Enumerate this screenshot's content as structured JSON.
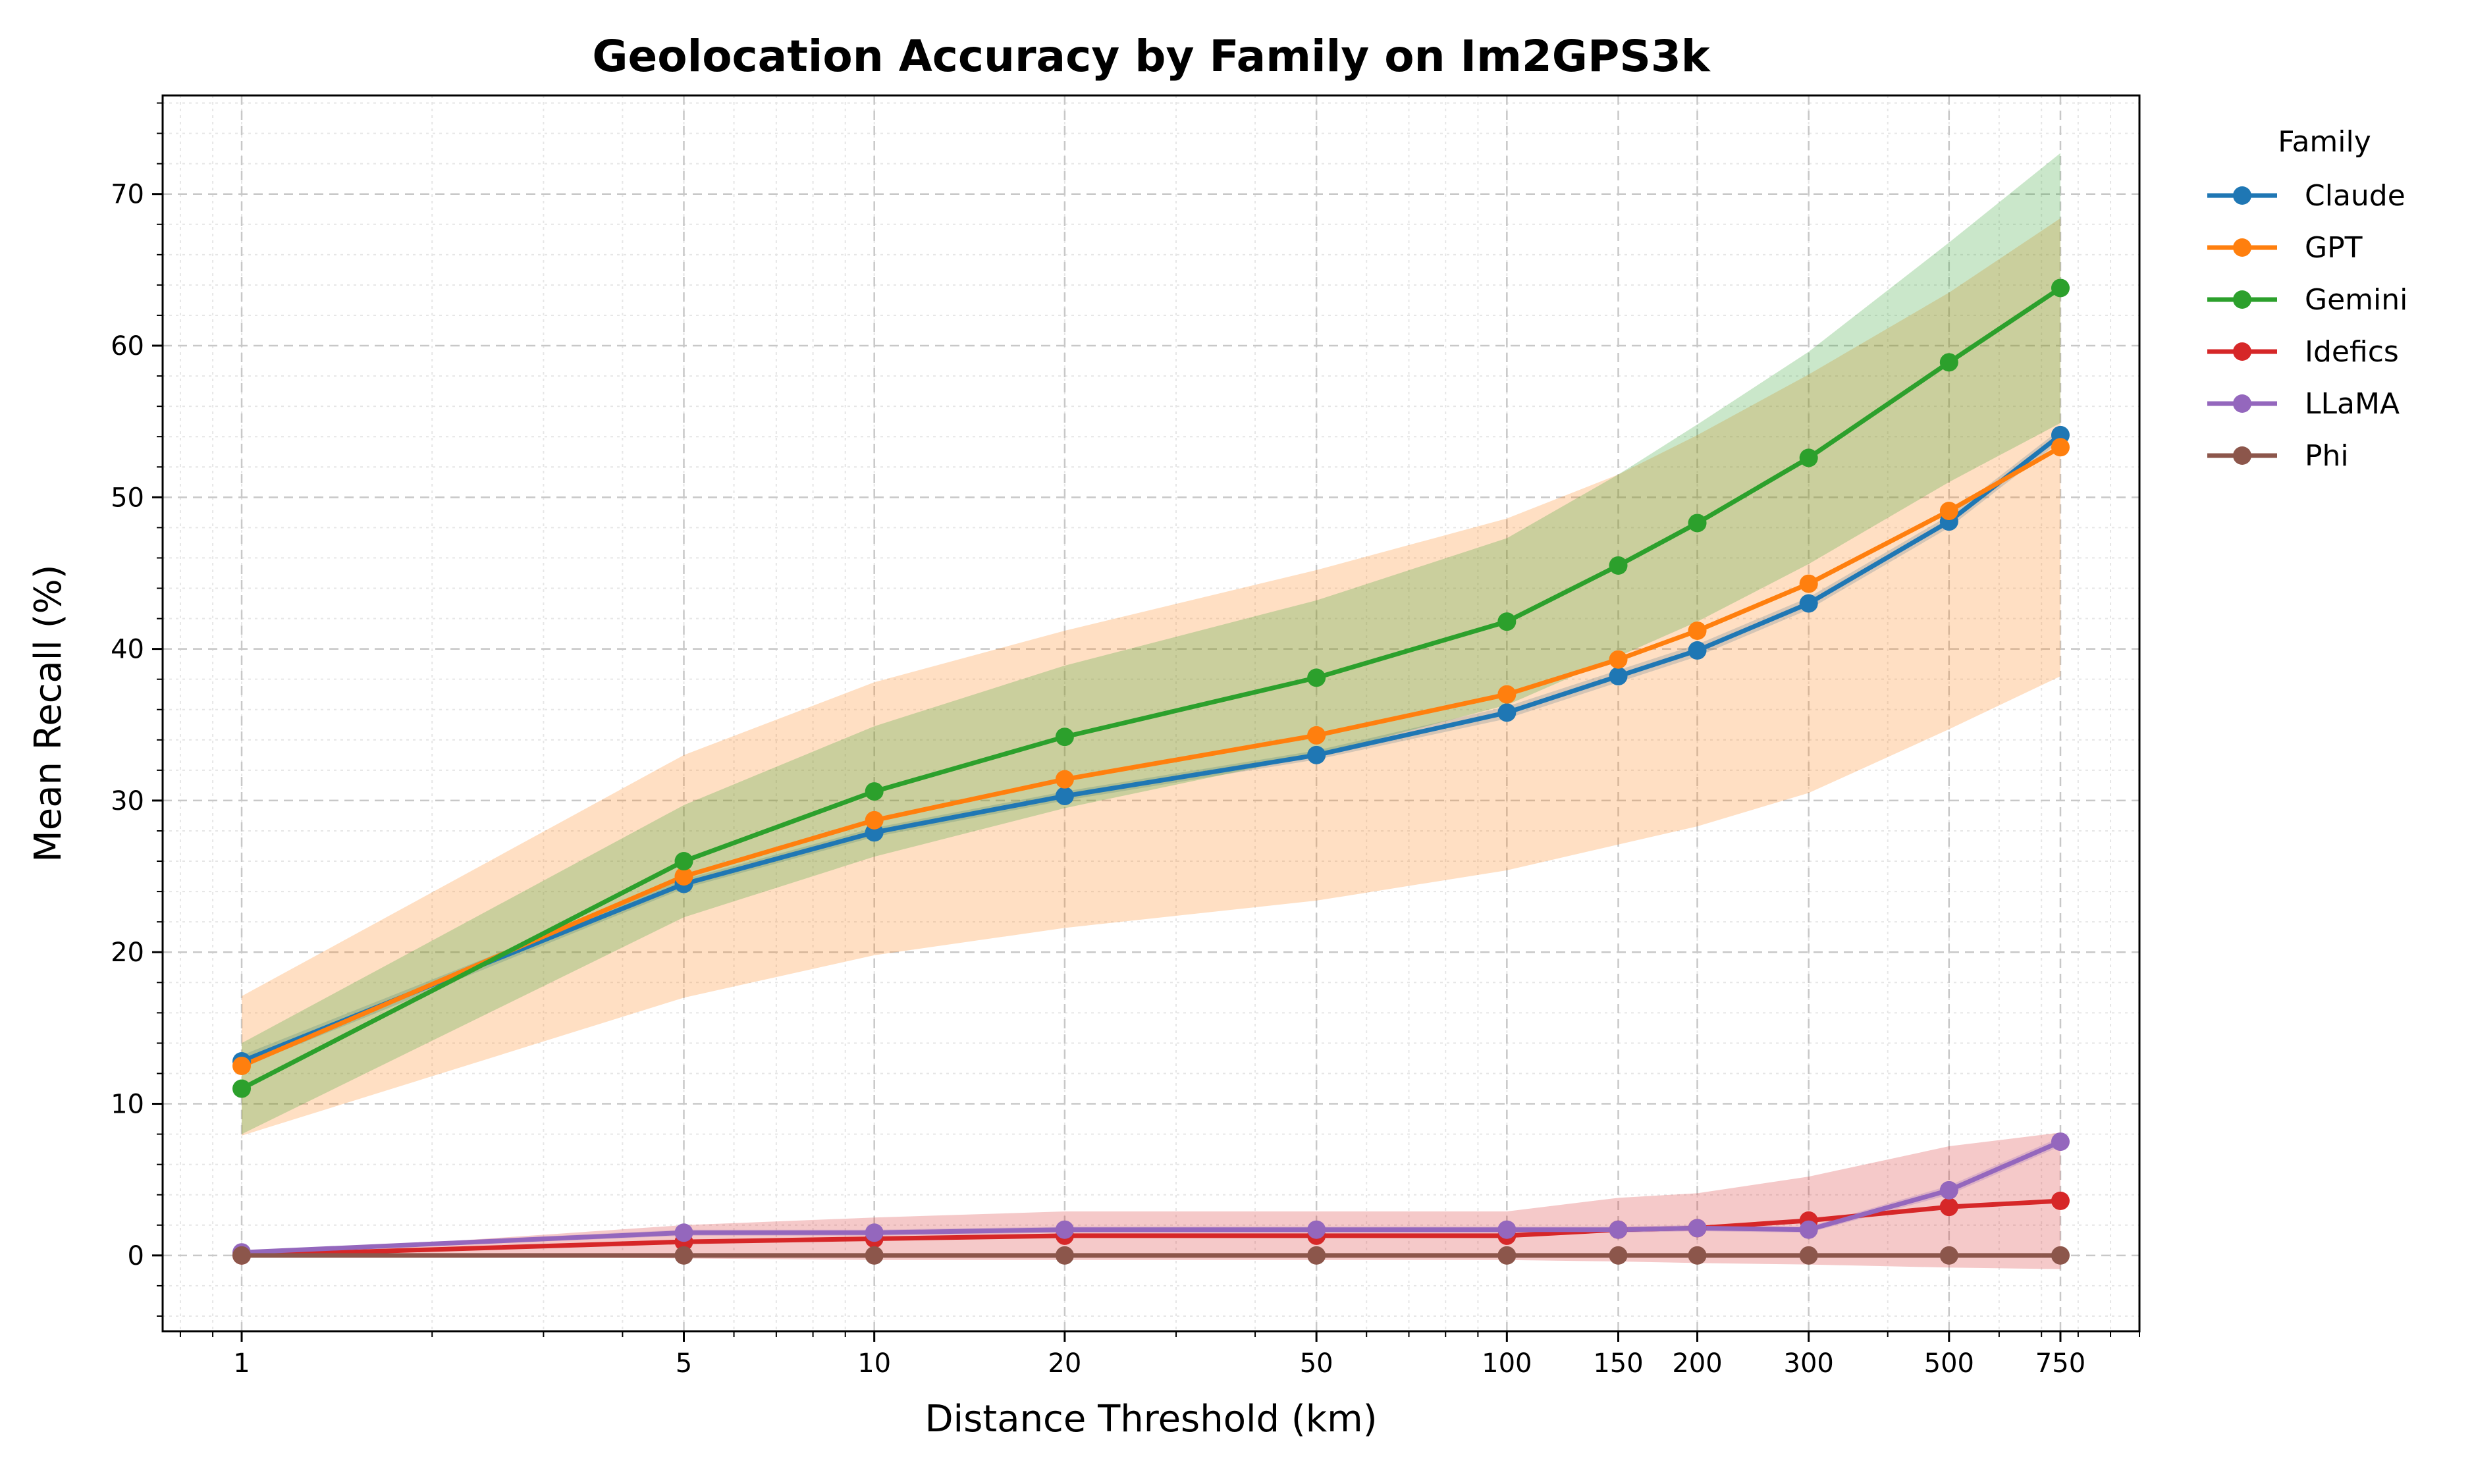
{
  "chart_data": {
    "type": "line",
    "title": "Geolocation Accuracy by Family on Im2GPS3k",
    "xlabel": "Distance Threshold (km)",
    "ylabel": "Mean Recall (%)",
    "x_scale": "log",
    "x": [
      1,
      5,
      10,
      20,
      50,
      100,
      150,
      200,
      300,
      500,
      750
    ],
    "x_tick_labels": [
      "1",
      "5",
      "10",
      "20",
      "50",
      "100",
      "150",
      "200",
      "300",
      "500",
      "750"
    ],
    "xlim": [
      0.75,
      1000
    ],
    "ylim": [
      -5,
      76.5
    ],
    "y_ticks": [
      0,
      10,
      20,
      30,
      40,
      50,
      60,
      70
    ],
    "y_tick_labels": [
      "0",
      "10",
      "20",
      "30",
      "40",
      "50",
      "60",
      "70"
    ],
    "grid": true,
    "legend": {
      "title": "Family",
      "placement": "outside-right"
    },
    "series": [
      {
        "name": "Claude",
        "color": "#1f77b4",
        "values": [
          12.8,
          24.5,
          27.9,
          30.3,
          33.0,
          35.8,
          38.2,
          39.9,
          43.0,
          48.4,
          54.1
        ],
        "band_lower": [
          12.4,
          24.2,
          27.6,
          30.0,
          32.7,
          35.4,
          37.8,
          39.5,
          42.6,
          48.0,
          53.7
        ],
        "band_upper": [
          13.2,
          24.8,
          28.2,
          30.6,
          33.3,
          36.2,
          38.6,
          40.3,
          43.4,
          48.8,
          54.5
        ]
      },
      {
        "name": "GPT",
        "color": "#ff7f0e",
        "values": [
          12.5,
          25.0,
          28.7,
          31.4,
          34.3,
          37.0,
          39.3,
          41.2,
          44.3,
          49.1,
          53.3
        ],
        "band_lower": [
          7.9,
          17.0,
          19.8,
          21.6,
          23.4,
          25.4,
          27.1,
          28.3,
          30.5,
          34.7,
          38.2
        ],
        "band_upper": [
          17.1,
          33.0,
          37.8,
          41.2,
          45.2,
          48.6,
          51.5,
          54.1,
          58.1,
          63.5,
          68.4
        ]
      },
      {
        "name": "Gemini",
        "color": "#2ca02c",
        "values": [
          11.0,
          26.0,
          30.6,
          34.2,
          38.1,
          41.8,
          45.5,
          48.3,
          52.6,
          58.9,
          63.8
        ],
        "band_lower": [
          8.0,
          22.3,
          26.3,
          29.5,
          33.0,
          36.3,
          39.5,
          41.8,
          45.6,
          51.0,
          54.9
        ],
        "band_upper": [
          14.0,
          29.7,
          34.9,
          38.9,
          43.2,
          47.3,
          51.5,
          54.8,
          59.6,
          66.8,
          72.7
        ]
      },
      {
        "name": "Idefics",
        "color": "#d62728",
        "values": [
          0.0,
          0.9,
          1.1,
          1.3,
          1.3,
          1.3,
          1.7,
          1.8,
          2.3,
          3.2,
          3.6
        ],
        "band_lower": [
          0.0,
          -0.2,
          -0.3,
          -0.3,
          -0.3,
          -0.3,
          -0.4,
          -0.5,
          -0.6,
          -0.8,
          -0.9
        ],
        "band_upper": [
          0.0,
          2.0,
          2.5,
          2.9,
          2.9,
          2.9,
          3.8,
          4.1,
          5.2,
          7.2,
          8.1
        ]
      },
      {
        "name": "LLaMA",
        "color": "#9467bd",
        "values": [
          0.2,
          1.5,
          1.5,
          1.7,
          1.7,
          1.7,
          1.7,
          1.8,
          1.7,
          4.3,
          7.5
        ],
        "band_lower": [
          0.1,
          1.3,
          1.3,
          1.5,
          1.5,
          1.5,
          1.5,
          1.6,
          1.5,
          4.0,
          7.2
        ],
        "band_upper": [
          0.3,
          1.7,
          1.7,
          1.9,
          1.9,
          1.9,
          1.9,
          2.0,
          1.9,
          4.6,
          7.8
        ]
      },
      {
        "name": "Phi",
        "color": "#8c564b",
        "values": [
          0.0,
          0.0,
          0.0,
          0.0,
          0.0,
          0.0,
          0.0,
          0.0,
          0.0,
          0.0,
          0.0
        ],
        "band_lower": [
          0.0,
          0.0,
          0.0,
          0.0,
          0.0,
          0.0,
          0.0,
          0.0,
          0.0,
          0.0,
          0.0
        ],
        "band_upper": [
          0.0,
          0.0,
          0.0,
          0.0,
          0.0,
          0.0,
          0.0,
          0.0,
          0.0,
          0.0,
          0.0
        ]
      }
    ]
  }
}
